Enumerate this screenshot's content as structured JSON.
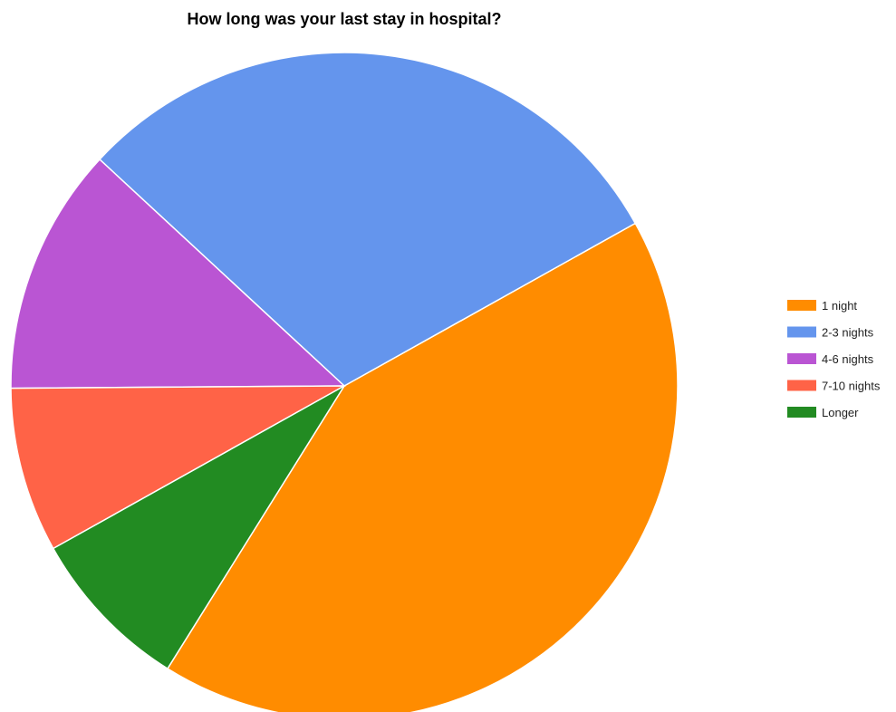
{
  "chart_data": {
    "type": "pie",
    "title": "How long was your last stay in hospital?",
    "categories": [
      "1 night",
      "2-3 nights",
      "4-6 nights",
      "7-10 nights",
      "Longer"
    ],
    "values": [
      42,
      30,
      12,
      8,
      8
    ],
    "colors": [
      "#ff8c00",
      "#6495ed",
      "#ba55d3",
      "#ff6347",
      "#228b22"
    ],
    "legend_position": "right",
    "start_angle_deg": 122,
    "direction": "clockwise"
  }
}
